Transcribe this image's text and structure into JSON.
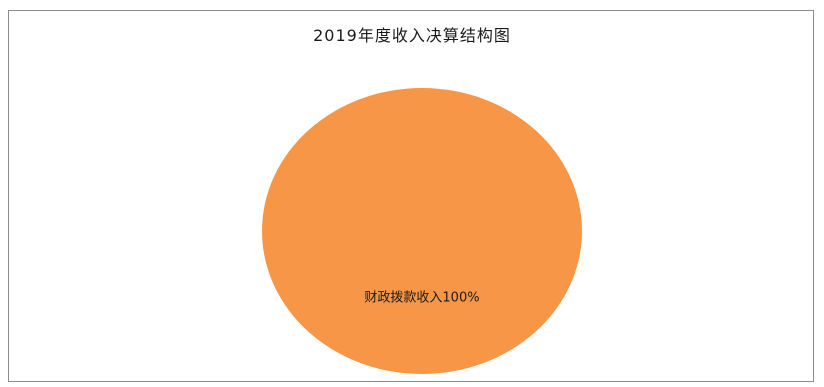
{
  "chart_data": {
    "type": "pie",
    "title": "2019年度收入决算结构图",
    "slices": [
      {
        "name": "财政拨款收入",
        "value": 100,
        "label": "财政拨款收入100%",
        "color": "#f79646"
      }
    ]
  }
}
